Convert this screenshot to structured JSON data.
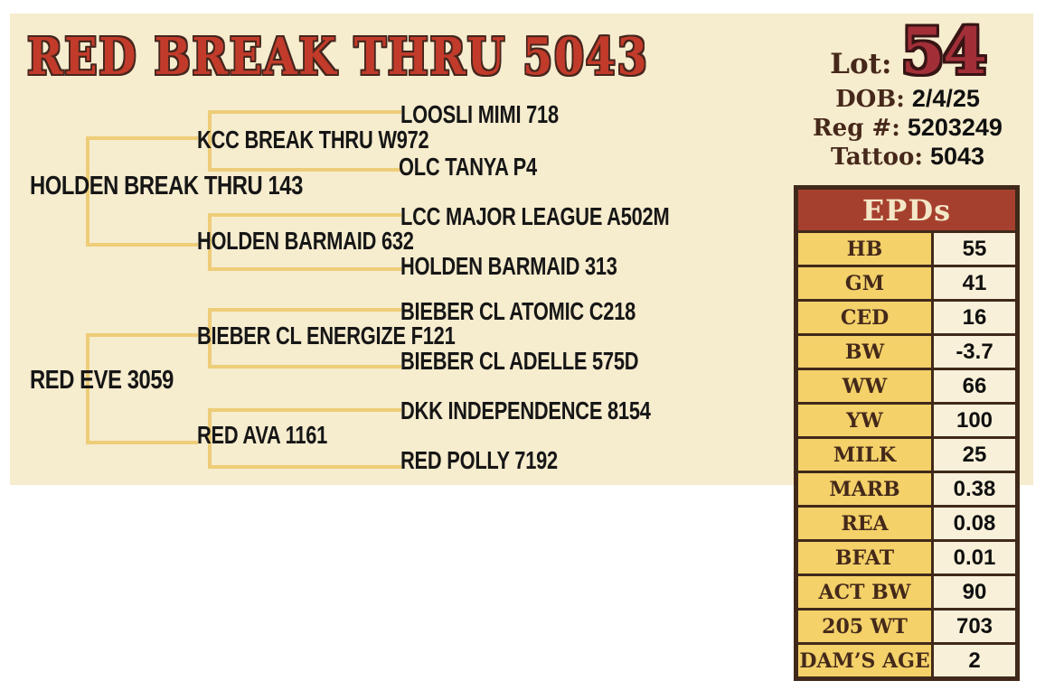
{
  "title": "RED BREAK THRU 5043",
  "info": {
    "lot_label": "Lot:",
    "lot_number": "54",
    "dob_label": "DOB:",
    "dob_value": "2/4/25",
    "reg_label": "Reg #:",
    "reg_value": "5203249",
    "tattoo_label": "Tattoo:",
    "tattoo_value": "5043"
  },
  "pedigree": {
    "sire": "HOLDEN BREAK THRU 143",
    "sire_sire": "KCC BREAK THRU W972",
    "sire_sire_sire": "LOOSLI MIMI 718",
    "sire_sire_dam": "OLC TANYA P4",
    "sire_dam": "HOLDEN BARMAID 632",
    "sire_dam_sire": "LCC MAJOR LEAGUE A502M",
    "sire_dam_dam": "HOLDEN BARMAID 313",
    "dam": "RED EVE 3059",
    "dam_sire": "BIEBER CL ENERGIZE F121",
    "dam_sire_sire": "BIEBER CL ATOMIC C218",
    "dam_sire_dam": "BIEBER CL ADELLE 575D",
    "dam_dam": "RED AVA 1161",
    "dam_dam_sire": "DKK INDEPENDENCE 8154",
    "dam_dam_dam": "RED POLLY 7192"
  },
  "epds": {
    "header": "EPDs",
    "rows": [
      {
        "label": "HB",
        "value": "55"
      },
      {
        "label": "GM",
        "value": "41"
      },
      {
        "label": "CED",
        "value": "16"
      },
      {
        "label": "BW",
        "value": "-3.7"
      },
      {
        "label": "WW",
        "value": "66"
      },
      {
        "label": "YW",
        "value": "100"
      },
      {
        "label": "MILK",
        "value": "25"
      },
      {
        "label": "MARB",
        "value": "0.38"
      },
      {
        "label": "REA",
        "value": "0.08"
      },
      {
        "label": "BFAT",
        "value": "0.01"
      },
      {
        "label": "ACT BW",
        "value": "90"
      },
      {
        "label": "205 WT",
        "value": "703"
      },
      {
        "label": "DAM’S AGE",
        "value": "2"
      }
    ]
  },
  "colors": {
    "title_red": "#c23b2a",
    "outline_brown": "#45261d",
    "lot_number_red": "#a22f38",
    "panel_cream": "#f6ecce",
    "tree_line_gold": "#eecd78",
    "table_border_brown": "#40291a",
    "table_header_red": "#a6402e",
    "table_label_gold": "#f4d169",
    "table_value_cream": "#f8f0d8",
    "label_brown": "#46281a"
  }
}
